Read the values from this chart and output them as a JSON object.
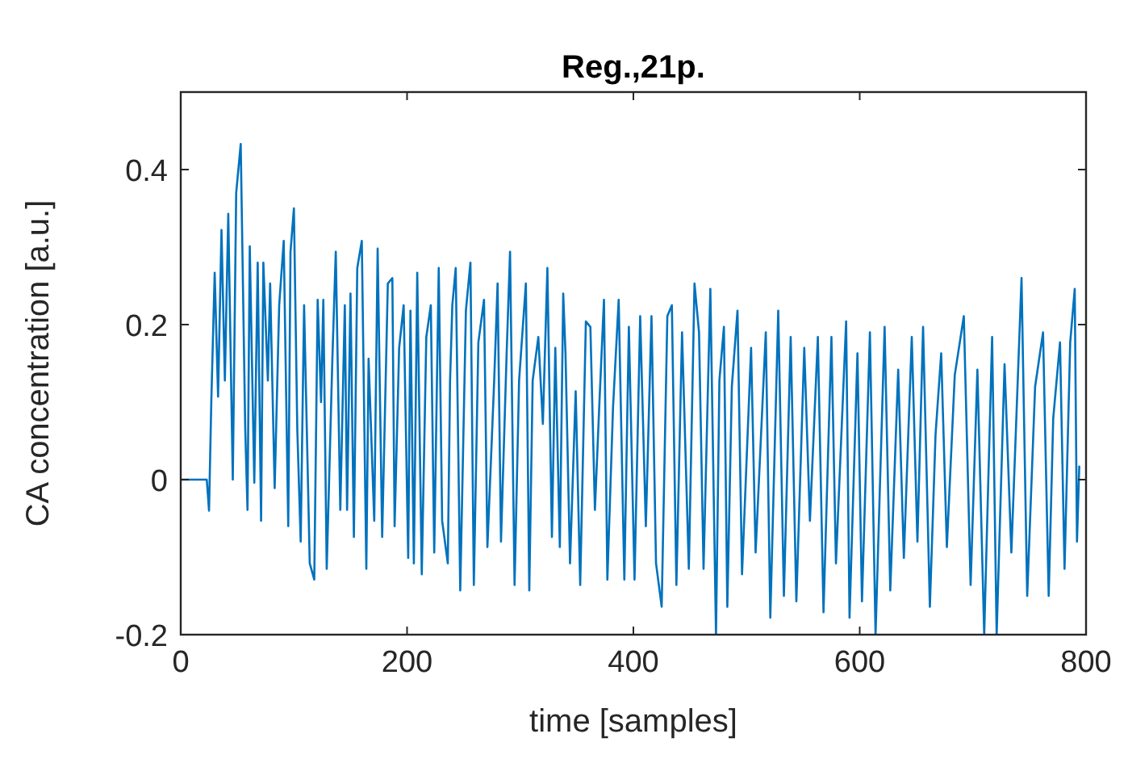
{
  "chart_data": {
    "type": "line",
    "title": "Reg.,21p.",
    "xlabel": "time [samples]",
    "ylabel": "CA concentration [a.u.]",
    "xlim": [
      0,
      800
    ],
    "ylim": [
      -0.2,
      0.5
    ],
    "xticks": [
      0,
      200,
      400,
      600,
      800
    ],
    "yticks": [
      -0.2,
      0,
      0.2,
      0.4
    ],
    "grid": false,
    "marker": "none",
    "line_style": "solid",
    "series": [
      {
        "color": "#0072bd",
        "x": [
          0,
          23,
          25,
          27,
          30,
          33,
          36,
          39,
          42,
          46,
          49,
          53,
          57,
          59,
          61,
          65,
          68,
          71,
          73,
          77,
          79,
          83,
          87,
          91,
          95,
          97,
          100,
          103,
          106,
          109,
          114,
          118,
          121,
          124,
          126,
          129,
          134,
          137,
          141,
          145,
          147,
          150,
          153,
          156,
          160,
          164,
          166,
          171,
          174,
          178,
          183,
          187,
          189,
          193,
          197,
          201,
          203,
          206,
          209,
          213,
          217,
          221,
          224,
          228,
          231,
          236,
          238,
          240,
          243,
          247,
          252,
          256,
          259,
          263,
          268,
          271,
          277,
          280,
          283,
          288,
          291,
          295,
          299,
          301,
          305,
          308,
          311,
          316,
          320,
          324,
          328,
          331,
          335,
          338,
          340,
          344,
          349,
          353,
          358,
          362,
          366,
          370,
          374,
          377,
          382,
          387,
          392,
          396,
          401,
          406,
          411,
          416,
          420,
          425,
          430,
          434,
          438,
          443,
          449,
          454,
          458,
          462,
          468,
          473,
          476,
          480,
          483,
          487,
          492,
          496,
          504,
          508,
          517,
          521,
          528,
          533,
          539,
          544,
          551,
          556,
          563,
          568,
          575,
          579,
          588,
          591,
          598,
          602,
          609,
          614,
          622,
          627,
          634,
          639,
          646,
          651,
          656,
          662,
          667,
          672,
          677,
          684,
          692,
          698,
          704,
          710,
          717,
          721,
          728,
          734,
          743,
          748,
          755,
          762,
          767,
          771,
          777,
          781,
          786,
          790,
          792,
          794
        ],
        "values": [
          0,
          0,
          -0.04,
          0.1,
          0.267,
          0.107,
          0.322,
          0.128,
          0.343,
          0,
          0.37,
          0.433,
          0.065,
          -0.039,
          0.301,
          -0.004,
          0.28,
          -0.053,
          0.28,
          0.128,
          0.253,
          -0.011,
          0.225,
          0.308,
          -0.06,
          0.294,
          0.35,
          0.065,
          -0.08,
          0.225,
          -0.108,
          -0.129,
          0.232,
          0.1,
          0.232,
          -0.115,
          0.156,
          0.294,
          -0.039,
          0.225,
          -0.039,
          0.24,
          -0.074,
          0.273,
          0.308,
          -0.115,
          0.156,
          -0.053,
          0.298,
          -0.074,
          0.253,
          0.26,
          -0.06,
          0.17,
          0.225,
          -0.101,
          0.218,
          -0.108,
          0.267,
          -0.122,
          0.184,
          0.225,
          -0.094,
          0.273,
          -0.053,
          -0.108,
          0.128,
          0.225,
          0.273,
          -0.143,
          0.218,
          0.28,
          -0.136,
          0.177,
          0.232,
          -0.087,
          0.128,
          0.253,
          -0.08,
          0.163,
          0.294,
          -0.136,
          0.128,
          0.17,
          0.253,
          -0.143,
          0.128,
          0.184,
          0.072,
          0.273,
          -0.074,
          0.17,
          -0.087,
          0.24,
          0.163,
          -0.108,
          0.114,
          -0.136,
          0.204,
          0.197,
          -0.039,
          0.1,
          0.232,
          -0.129,
          0.093,
          0.232,
          -0.129,
          0.197,
          -0.129,
          0.211,
          -0.06,
          0.211,
          -0.108,
          -0.164,
          0.211,
          0.225,
          -0.136,
          0.19,
          -0.115,
          0.253,
          0.19,
          -0.115,
          0.246,
          -0.2,
          0.128,
          0.197,
          -0.164,
          0.12,
          0.218,
          -0.122,
          0.17,
          -0.094,
          0.19,
          -0.178,
          0.218,
          -0.15,
          0.184,
          -0.157,
          0.17,
          -0.053,
          0.184,
          -0.171,
          0.184,
          -0.108,
          0.204,
          -0.178,
          0.163,
          -0.157,
          0.19,
          -0.2,
          0.197,
          -0.143,
          0.142,
          -0.101,
          0.184,
          -0.08,
          0.197,
          -0.164,
          0.058,
          0.163,
          -0.087,
          0.135,
          0.211,
          -0.136,
          0.142,
          -0.2,
          0.184,
          -0.2,
          0.149,
          -0.094,
          0.26,
          -0.15,
          0.12,
          0.19,
          -0.15,
          0.079,
          0.177,
          -0.115,
          0.177,
          0.246,
          -0.08,
          0.017
        ]
      }
    ]
  }
}
